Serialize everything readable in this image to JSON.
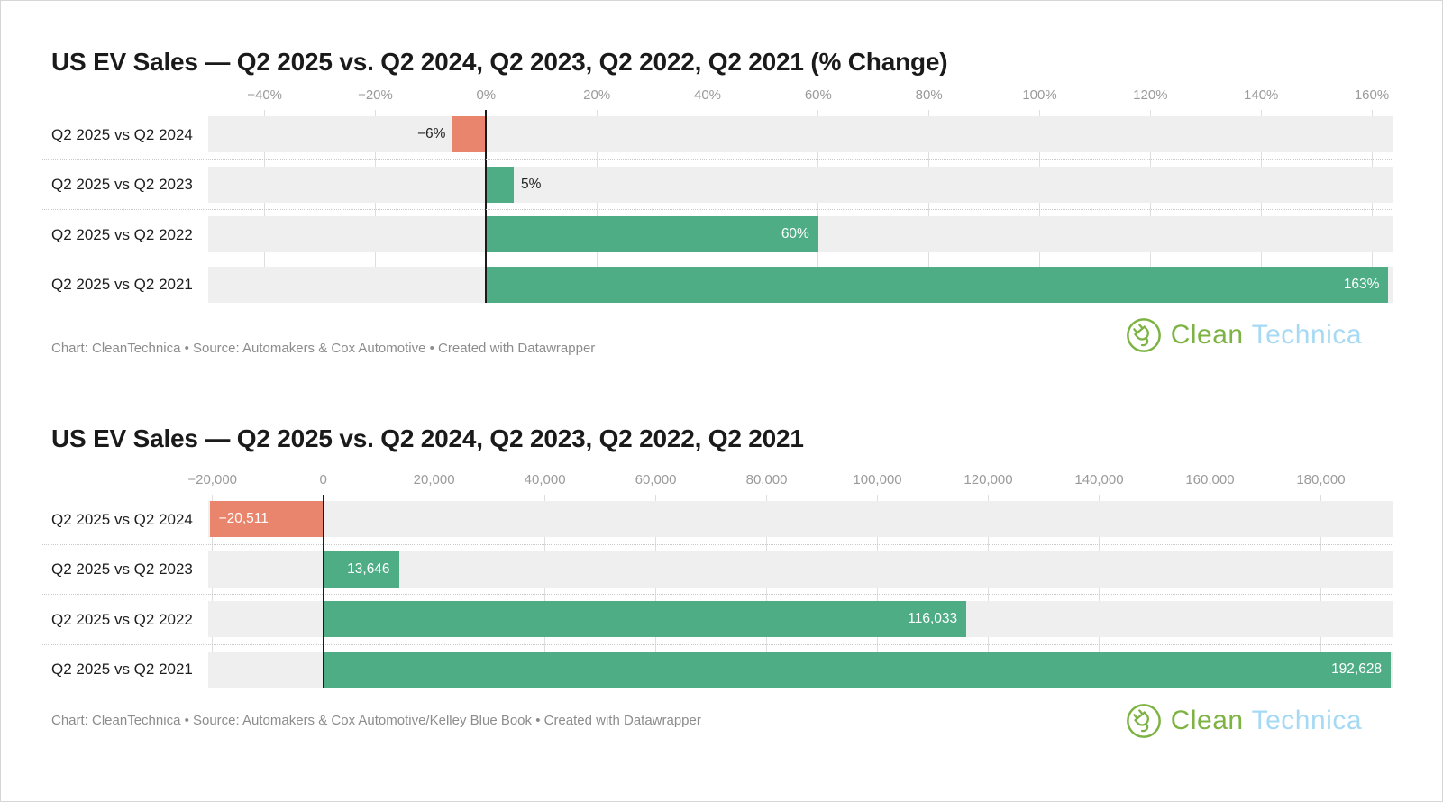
{
  "branding": {
    "clean": "Clean",
    "technica": "Technica",
    "green_hex": "#7db343",
    "blue_hex": "#a6d9f4"
  },
  "colors": {
    "positive_bar": "#4fad85",
    "negative_bar": "#e9856c",
    "bar_track": "#efefef",
    "gridline": "#dedede",
    "zero_line": "#1a1a1a",
    "row_separator": "#c9c9c9",
    "axis_text": "#9a9a9a",
    "row_label_text": "#1d1d1d",
    "bar_label_inside": "#ffffff",
    "bar_label_outside": "#222222",
    "footer_text": "#8c8c8c",
    "title_text": "#1a1a1a"
  },
  "chart_data": [
    {
      "type": "bar",
      "orientation": "horizontal",
      "title": "US EV Sales — Q2 2025 vs. Q2 2024, Q2 2023, Q2 2022, Q2 2021 (% Change)",
      "categories": [
        "Q2 2025 vs Q2 2024",
        "Q2 2025 vs Q2 2023",
        "Q2 2025 vs Q2 2022",
        "Q2 2025 vs Q2 2021"
      ],
      "values": [
        -6,
        5,
        60,
        163
      ],
      "value_labels": [
        "−6%",
        "5%",
        "60%",
        "163%"
      ],
      "label_placement": [
        "outside-left",
        "outside-right",
        "inside-right",
        "inside-right"
      ],
      "axis": {
        "min": -50.2,
        "max": 163.9,
        "ticks": [
          -40,
          -20,
          0,
          20,
          40,
          60,
          80,
          100,
          120,
          140,
          160
        ],
        "tick_labels": [
          "−40%",
          "−20%",
          "0%",
          "20%",
          "40%",
          "60%",
          "80%",
          "100%",
          "120%",
          "140%",
          "160%"
        ]
      },
      "grid": true,
      "footer": "Chart: CleanTechnica • Source: Automakers & Cox Automotive • Created with Datawrapper"
    },
    {
      "type": "bar",
      "orientation": "horizontal",
      "title": "US EV Sales — Q2 2025 vs. Q2 2024, Q2 2023, Q2 2022, Q2 2021",
      "categories": [
        "Q2 2025 vs Q2 2024",
        "Q2 2025 vs Q2 2023",
        "Q2 2025 vs Q2 2022",
        "Q2 2025 vs Q2 2021"
      ],
      "values": [
        -20511,
        13646,
        116033,
        192628
      ],
      "value_labels": [
        "−20,511",
        "13,646",
        "116,033",
        "192,628"
      ],
      "label_placement": [
        "inside-left",
        "inside-right",
        "inside-right",
        "inside-right"
      ],
      "axis": {
        "min": -20762,
        "max": 193100,
        "ticks": [
          -20000,
          0,
          20000,
          40000,
          60000,
          80000,
          100000,
          120000,
          140000,
          160000,
          180000
        ],
        "tick_labels": [
          "−20,000",
          "0",
          "20,000",
          "40,000",
          "60,000",
          "80,000",
          "100,000",
          "120,000",
          "140,000",
          "160,000",
          "180,000"
        ]
      },
      "grid": true,
      "footer": "Chart: CleanTechnica • Source: Automakers & Cox Automotive/Kelley Blue Book • Created with Datawrapper"
    }
  ]
}
